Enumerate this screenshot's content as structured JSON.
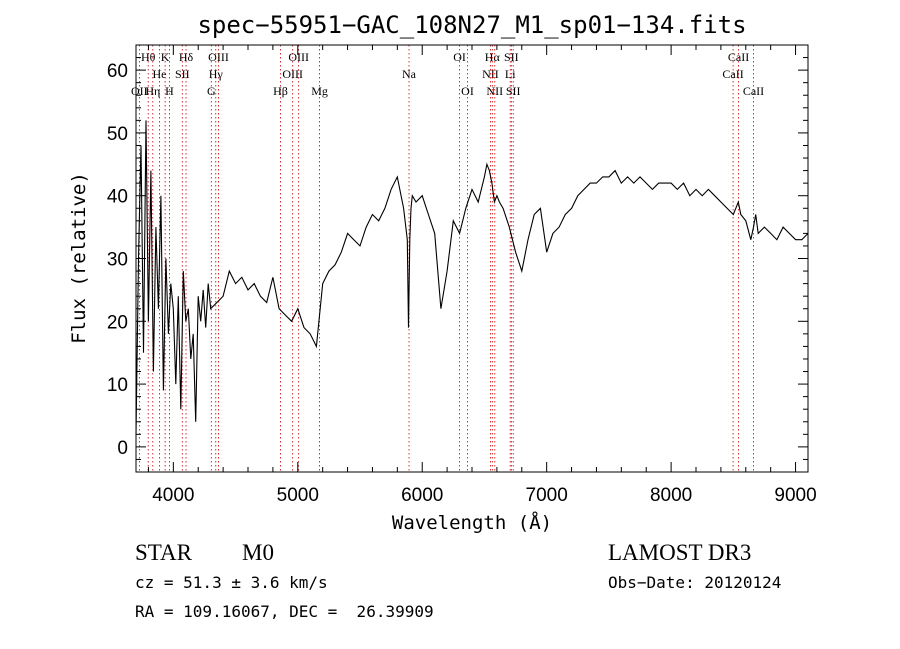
{
  "chart_data": {
    "type": "line",
    "title": "spec−55951−GAC_108N27_M1_sp01−134.fits",
    "xlabel": "Wavelength (Å)",
    "ylabel": "Flux (relative)",
    "xlim": [
      3700,
      9100
    ],
    "ylim": [
      -4,
      64
    ],
    "xticks": [
      4000,
      5000,
      6000,
      7000,
      8000,
      9000
    ],
    "yticks": [
      0,
      10,
      20,
      30,
      40,
      50,
      60
    ],
    "grid": false,
    "series": [
      {
        "name": "flux",
        "x": [
          3700,
          3720,
          3740,
          3760,
          3780,
          3800,
          3820,
          3840,
          3860,
          3880,
          3900,
          3920,
          3940,
          3960,
          3980,
          4000,
          4020,
          4040,
          4060,
          4080,
          4100,
          4120,
          4140,
          4160,
          4180,
          4200,
          4220,
          4240,
          4260,
          4280,
          4300,
          4350,
          4400,
          4450,
          4500,
          4550,
          4600,
          4650,
          4700,
          4750,
          4800,
          4850,
          4900,
          4950,
          5000,
          5050,
          5100,
          5150,
          5200,
          5250,
          5300,
          5350,
          5400,
          5450,
          5500,
          5550,
          5600,
          5650,
          5700,
          5750,
          5800,
          5850,
          5880,
          5890,
          5900,
          5910,
          5920,
          5950,
          6000,
          6050,
          6100,
          6150,
          6200,
          6250,
          6300,
          6350,
          6400,
          6450,
          6500,
          6520,
          6540,
          6560,
          6580,
          6600,
          6620,
          6650,
          6700,
          6750,
          6800,
          6850,
          6900,
          6950,
          7000,
          7050,
          7100,
          7150,
          7200,
          7250,
          7300,
          7350,
          7400,
          7450,
          7500,
          7550,
          7600,
          7650,
          7700,
          7750,
          7800,
          7850,
          7900,
          7950,
          8000,
          8050,
          8100,
          8150,
          8200,
          8250,
          8300,
          8350,
          8400,
          8450,
          8500,
          8520,
          8540,
          8560,
          8600,
          8640,
          8662,
          8680,
          8700,
          8750,
          8800,
          8850,
          8900,
          8950,
          9000,
          9050,
          9100
        ],
        "y": [
          2,
          30,
          48,
          15,
          52,
          20,
          44,
          12,
          35,
          22,
          40,
          9,
          30,
          18,
          26,
          22,
          10,
          24,
          6,
          28,
          20,
          22,
          14,
          18,
          4,
          24,
          20,
          25,
          19,
          26,
          22,
          23,
          24,
          28,
          26,
          27,
          25,
          26,
          24,
          23,
          27,
          22,
          21,
          20,
          22,
          19,
          18,
          16,
          26,
          28,
          29,
          31,
          34,
          33,
          32,
          35,
          37,
          36,
          38,
          41,
          43,
          38,
          33,
          19,
          33,
          38,
          40,
          39,
          40,
          37,
          34,
          22,
          28,
          36,
          34,
          38,
          41,
          39,
          43,
          45,
          44,
          42,
          39,
          40,
          39,
          38,
          35,
          31,
          28,
          33,
          37,
          38,
          31,
          34,
          35,
          37,
          38,
          40,
          41,
          42,
          42,
          43,
          43,
          44,
          42,
          43,
          42,
          43,
          42,
          41,
          42,
          42,
          42,
          41,
          42,
          40,
          41,
          40,
          41,
          40,
          39,
          38,
          37,
          38,
          39,
          37,
          36,
          33,
          35,
          37,
          34,
          35,
          34,
          33,
          35,
          34,
          33,
          33,
          34
        ]
      }
    ],
    "line_markers": [
      {
        "label": "OII",
        "x": 3727,
        "row": 2
      },
      {
        "label": "Hθ",
        "x": 3798,
        "row": 0
      },
      {
        "label": "Hη",
        "x": 3835,
        "row": 2
      },
      {
        "label": "He",
        "x": 3889,
        "row": 1
      },
      {
        "label": "K",
        "x": 3934,
        "row": 0
      },
      {
        "label": "H",
        "x": 3969,
        "row": 2
      },
      {
        "label": "SII",
        "x": 4072,
        "row": 1
      },
      {
        "label": "Hδ",
        "x": 4102,
        "row": 0
      },
      {
        "label": "OIII",
        "x": 4363,
        "row": 0
      },
      {
        "label": "Hγ",
        "x": 4341,
        "row": 1
      },
      {
        "label": "G",
        "x": 4305,
        "row": 2
      },
      {
        "label": "Hβ",
        "x": 4861,
        "row": 2
      },
      {
        "label": "OIII",
        "x": 4959,
        "row": 1
      },
      {
        "label": "OIII",
        "x": 5007,
        "row": 0
      },
      {
        "label": "Mg",
        "x": 5175,
        "row": 2
      },
      {
        "label": "Na",
        "x": 5894,
        "row": 1
      },
      {
        "label": "OI",
        "x": 6300,
        "row": 0
      },
      {
        "label": "OI",
        "x": 6364,
        "row": 2
      },
      {
        "label": "NII",
        "x": 6548,
        "row": 1
      },
      {
        "label": "Hα",
        "x": 6563,
        "row": 0
      },
      {
        "label": "NII",
        "x": 6583,
        "row": 2
      },
      {
        "label": "Li",
        "x": 6707,
        "row": 1
      },
      {
        "label": "SII",
        "x": 6716,
        "row": 0
      },
      {
        "label": "SII",
        "x": 6731,
        "row": 2
      },
      {
        "label": "CaII",
        "x": 8498,
        "row": 1
      },
      {
        "label": "CaII",
        "x": 8542,
        "row": 0
      },
      {
        "label": "CaII",
        "x": 8662,
        "row": 2
      }
    ]
  },
  "info": {
    "class": "STAR",
    "subclass": "M0",
    "survey": "LAMOST DR3",
    "redshift": "cz = 51.3 ± 3.6 km/s",
    "obs_date": "Obs−Date: 20120124",
    "coords": "RA = 109.16067, DEC =  26.39909"
  },
  "colors": {
    "axis": "#000000",
    "spectrum": "#000000",
    "marker_line": "#cc0000"
  }
}
